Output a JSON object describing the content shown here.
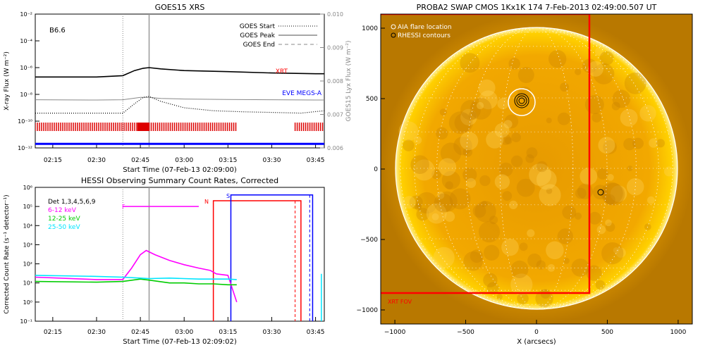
{
  "colors": {
    "xrt": "#ff0000",
    "eve": "#0000ff",
    "hessi_low": "#ff00ff",
    "hessi_mid": "#00cc00",
    "hessi_high": "#00e5ff",
    "orbit_bar_red": "#dd0000",
    "orbit_bar_blue": "#0000ff",
    "sun_core": "#f0a000",
    "sun_rim": "#ffd400",
    "sun_bg": "#d98f00"
  },
  "goes_panel": {
    "title": "GOES15 XRS",
    "flare_class": "B6.6",
    "ylabel_left": "X-ray Flux (W m⁻²)",
    "ylabel_right": "GOES15 Lyx Flux (W m⁻²)",
    "xlabel": "Start Time (07-Feb-13 02:09:00)",
    "xrt_label": "XRT",
    "eve_label": "EVE MEGS-A",
    "legend": [
      {
        "label": "GOES Start",
        "style": "dotted"
      },
      {
        "label": "GOES Peak",
        "style": "solid"
      },
      {
        "label": "GOES End",
        "style": "dashed"
      }
    ],
    "y_ticks_left": [
      "10⁻²",
      "10⁻⁴",
      "10⁻⁶",
      "10⁻⁸",
      "10⁻¹⁰",
      "10⁻¹²"
    ],
    "y_ticks_right": [
      "0.010",
      "0.009",
      "0.008",
      "0.007",
      "0.006"
    ],
    "x_ticks": [
      "02:15",
      "02:30",
      "02:45",
      "03:00",
      "03:15",
      "03:30",
      "03:45"
    ]
  },
  "hessi_panel": {
    "title": "HESSI Observing Summary Count Rates, Corrected",
    "ylabel": "Corrected Count Rate (s⁻¹ detector⁻¹)",
    "xlabel": "Start Time (07-Feb-13 02:09:02)",
    "legend": [
      {
        "label": "Det 1,3,4,5,6,9",
        "color": "#000000"
      },
      {
        "label": "6-12 keV",
        "color": "#ff00ff"
      },
      {
        "label": "12-25 keV",
        "color": "#00cc00"
      },
      {
        "label": "25-50 keV",
        "color": "#00e5ff"
      }
    ],
    "flags": {
      "f": "F",
      "n": "N",
      "s": "S"
    },
    "y_ticks": [
      "10⁶",
      "10⁵",
      "10⁴",
      "10³",
      "10²",
      "10¹",
      "10⁰",
      "10⁻¹"
    ],
    "x_ticks": [
      "02:15",
      "02:30",
      "02:45",
      "03:00",
      "03:15",
      "03:30",
      "03:45"
    ]
  },
  "swap_panel": {
    "title": "PROBA2 SWAP CMOS 1Kx1K 174   7-Feb-2013 02:49:00.507 UT",
    "legend": [
      {
        "label": "AIA flare location",
        "color": "#ffffff"
      },
      {
        "label": "RHESSI contours",
        "color": "#000000"
      }
    ],
    "xrt_fov_label": "XRT FOV",
    "xlabel": "X (arcsecs)",
    "x_ticks": [
      "−1000",
      "−500",
      "0",
      "500",
      "1000"
    ],
    "y_ticks": [
      "1000",
      "500",
      "0",
      "−500",
      "−1000"
    ]
  },
  "chart_data": [
    {
      "type": "line",
      "title": "GOES15 XRS",
      "xlabel": "Start Time (07-Feb-13 02:09:00)",
      "ylabel": "X-ray Flux (W m⁻²)",
      "y2label": "GOES15 Lyx Flux (W m⁻²)",
      "yscale": "log",
      "ylim": [
        1e-12,
        0.01
      ],
      "y2lim": [
        0.006,
        0.01
      ],
      "xlim": [
        "02:09",
        "03:48"
      ],
      "markers": {
        "goes_start": "02:39",
        "goes_peak": "02:48",
        "goes_end": null
      },
      "series": [
        {
          "name": "XRT",
          "x": [
            "02:09",
            "02:30",
            "02:39",
            "02:43",
            "02:46",
            "02:48",
            "02:52",
            "03:00",
            "03:15",
            "03:30",
            "03:45",
            "03:48"
          ],
          "values": [
            2e-07,
            2e-07,
            2.5e-07,
            6e-07,
            9e-07,
            1e-06,
            8e-07,
            6e-07,
            5e-07,
            4e-07,
            3.5e-07,
            3.5e-07
          ]
        },
        {
          "x": [
            "02:09",
            "02:30",
            "02:39",
            "02:45",
            "02:48",
            "02:52",
            "03:00",
            "03:15",
            "03:30",
            "03:45",
            "03:48"
          ],
          "values": [
            4e-09,
            3.8e-09,
            4e-09,
            6e-09,
            6e-09,
            5e-09,
            4.5e-09,
            4.2e-09,
            4e-09,
            3.8e-09,
            3.8e-09
          ]
        },
        {
          "x": [
            "02:09",
            "02:30",
            "02:39",
            "02:43",
            "02:46",
            "02:48",
            "02:52",
            "03:00",
            "03:10",
            "03:20",
            "03:30",
            "03:40",
            "03:48"
          ],
          "values": [
            4e-10,
            4e-10,
            4e-10,
            2e-09,
            6e-09,
            7e-09,
            3e-09,
            1e-09,
            6e-10,
            5e-10,
            4.5e-10,
            4e-10,
            6e-10
          ]
        },
        {
          "name": "EVE MEGS-A",
          "x": [
            "02:09",
            "03:48"
          ],
          "values": [
            2e-12,
            2e-12
          ]
        }
      ]
    },
    {
      "type": "line",
      "title": "HESSI Observing Summary Count Rates, Corrected",
      "xlabel": "Start Time (07-Feb-13 02:09:02)",
      "ylabel": "Corrected Count Rate (s⁻¹ detector⁻¹)",
      "yscale": "log",
      "ylim": [
        0.1,
        1000000.0
      ],
      "xlim": [
        "02:09",
        "03:48"
      ],
      "series": [
        {
          "name": "6-12 keV",
          "x": [
            "02:09",
            "02:30",
            "02:39",
            "02:42",
            "02:45",
            "02:47",
            "02:50",
            "02:55",
            "03:00",
            "03:05",
            "03:09",
            "03:11",
            "03:15",
            "03:18"
          ],
          "values": [
            20,
            15,
            15,
            60,
            300,
            500,
            300,
            150,
            90,
            60,
            45,
            30,
            25,
            1
          ]
        },
        {
          "name": "12-25 keV",
          "x": [
            "02:09",
            "02:30",
            "02:39",
            "02:45",
            "02:48",
            "02:55",
            "03:00",
            "03:05",
            "03:10",
            "03:15",
            "03:18"
          ],
          "values": [
            12,
            11,
            12,
            16,
            14,
            10,
            10,
            9,
            9,
            8,
            8
          ]
        },
        {
          "name": "25-50 keV",
          "x": [
            "02:09",
            "02:30",
            "02:39",
            "02:45",
            "02:48",
            "02:55",
            "03:00",
            "03:05",
            "03:10",
            "03:15",
            "03:18"
          ],
          "values": [
            25,
            22,
            20,
            18,
            17,
            18,
            17,
            16,
            16,
            16,
            15
          ]
        }
      ]
    },
    {
      "type": "scatter",
      "title": "PROBA2 SWAP CMOS 1Kx1K 174   7-Feb-2013 02:49:00.507 UT",
      "xlabel": "X (arcsecs)",
      "xlim": [
        -1100,
        1100
      ],
      "ylim": [
        -1100,
        1100
      ],
      "series": [
        {
          "name": "AIA flare location",
          "x": [
            -110
          ],
          "values": [
            470
          ]
        },
        {
          "name": "RHESSI contours",
          "x": [
            -110,
            450
          ],
          "values": [
            470,
            -170
          ]
        }
      ],
      "xrt_fov": {
        "x_max": 380,
        "y_min": -880
      }
    }
  ]
}
